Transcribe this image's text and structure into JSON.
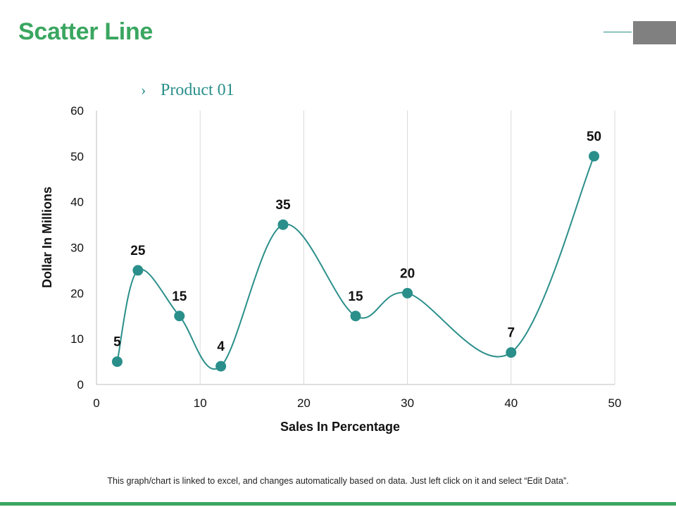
{
  "page": {
    "title": "Scatter Line",
    "footnote": "This graph/chart is linked to excel, and changes automatically based on data. Just left click on it and select “Edit Data”."
  },
  "colors": {
    "title": "#3aa660",
    "series": "#2a8f8a",
    "legend_text": "#2a8f8a",
    "grid": "#d9d9d9",
    "axis": "#bfbfbf",
    "deco_line": "#2a8f8a",
    "deco_box": "#808080",
    "bottom_bar": "#3aa660"
  },
  "icons": {
    "legend_marker": "chevron-right-icon"
  },
  "chart_data": {
    "type": "scatter",
    "smooth_line": true,
    "title": "",
    "xlabel": "Sales In Percentage",
    "ylabel": "Dollar In Millions",
    "xlim": [
      0,
      50
    ],
    "ylim": [
      0,
      60
    ],
    "x_ticks": [
      0,
      10,
      20,
      30,
      40,
      50
    ],
    "y_ticks": [
      0,
      10,
      20,
      30,
      40,
      50,
      60
    ],
    "vertical_grid": true,
    "horizontal_grid": false,
    "legend_position": "top-left",
    "series": [
      {
        "name": "Product 01",
        "legend_symbol": "›",
        "x": [
          2,
          4,
          8,
          12,
          18,
          25,
          30,
          40,
          48
        ],
        "y": [
          5,
          25,
          15,
          4,
          35,
          15,
          20,
          7,
          50
        ],
        "labels": [
          "5",
          "25",
          "15",
          "4",
          "35",
          "15",
          "20",
          "7",
          "50"
        ]
      }
    ]
  }
}
